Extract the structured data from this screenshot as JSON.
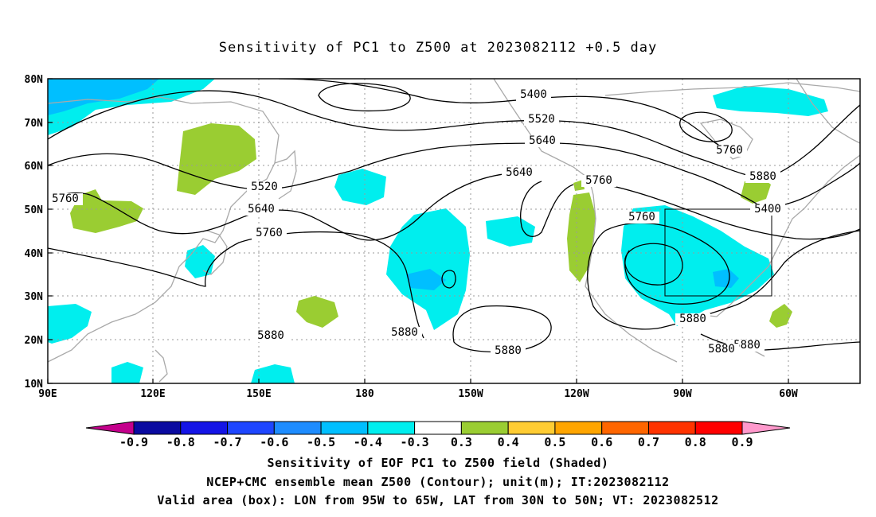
{
  "title": "Sensitivity of PC1 to Z500 at 2023082112 +0.5 day",
  "map": {
    "lon_ticks": [
      "90E",
      "120E",
      "150E",
      "180",
      "150W",
      "120W",
      "90W",
      "60W"
    ],
    "lat_ticks": [
      "80N",
      "70N",
      "60N",
      "50N",
      "40N",
      "30N",
      "20N",
      "10N"
    ],
    "valid_box": {
      "lon_from": "95W",
      "lon_to": "65W",
      "lat_from": "30N",
      "lat_to": "50N"
    },
    "contour_labels": [
      "5400",
      "5520",
      "5640",
      "5760",
      "5880",
      "5400",
      "5520",
      "5640",
      "5640",
      "5760",
      "5760",
      "5760",
      "5760",
      "5880",
      "5880",
      "5880",
      "5880",
      "5880",
      "5880"
    ]
  },
  "colorbar": {
    "labels": [
      "-0.9",
      "-0.8",
      "-0.7",
      "-0.6",
      "-0.5",
      "-0.4",
      "-0.3",
      "0.3",
      "0.4",
      "0.5",
      "0.6",
      "0.7",
      "0.8",
      "0.9"
    ],
    "colors": [
      "#c4008c",
      "#0a0aa0",
      "#1414e6",
      "#1e46ff",
      "#1e8cff",
      "#00bfff",
      "#00eeee",
      "#ffffff",
      "#9acd32",
      "#ffcc33",
      "#ffa500",
      "#ff6600",
      "#ff3300",
      "#ff0000",
      "#ff99cc"
    ]
  },
  "footer": {
    "line1": "Sensitivity of EOF PC1 to Z500 field (Shaded)",
    "line2": "NCEP+CMC ensemble mean Z500 (Contour); unit(m); IT:2023082112",
    "line3": "Valid area (box): LON from 95W to 65W, LAT from 30N to 50N; VT: 2023082512"
  }
}
